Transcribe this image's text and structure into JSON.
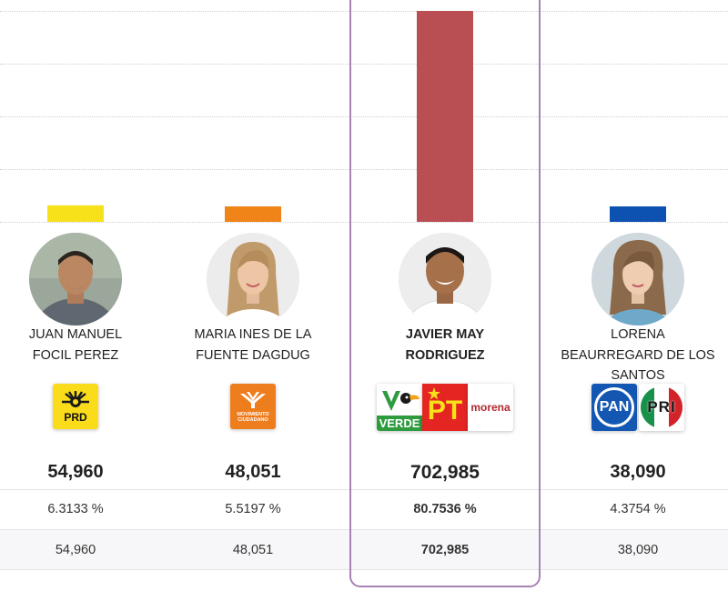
{
  "chart_data": {
    "type": "bar",
    "categories": [
      "JUAN MANUEL FOCIL PEREZ",
      "MARIA INES DE LA FUENTE DAGDUG",
      "JAVIER MAY RODRIGUEZ",
      "LORENA BEAURREGARD DE LOS SANTOS"
    ],
    "values": [
      54960,
      48051,
      702985,
      38090
    ],
    "colors": [
      "#f7e11b",
      "#f08418",
      "#b94f52",
      "#0d52b0"
    ],
    "grid": true,
    "ylim": [
      0,
      702985
    ]
  },
  "candidates": [
    {
      "name_line1": "JUAN MANUEL",
      "name_line2": "FOCIL PEREZ",
      "name_line3": "",
      "votes": "54,960",
      "percent": "6.3133 %",
      "total": "54,960",
      "avatar_icon": "man-portrait-icon",
      "logos": [
        {
          "label": "PRD",
          "icon": "prd-sun-logo"
        }
      ]
    },
    {
      "name_line1": "MARIA INES DE LA",
      "name_line2": "FUENTE DAGDUG",
      "name_line3": "",
      "votes": "48,051",
      "percent": "5.5197 %",
      "total": "48,051",
      "avatar_icon": "woman-portrait-icon",
      "logos": [
        {
          "label": "MOVIMIENTO CIUDADANO",
          "icon": "eagle-logo"
        }
      ]
    },
    {
      "name_line1": "JAVIER MAY",
      "name_line2": "RODRIGUEZ",
      "name_line3": "",
      "votes": "702,985",
      "percent": "80.7536 %",
      "total": "702,985",
      "avatar_icon": "man-portrait-icon",
      "logos": [
        {
          "label": "VERDE",
          "icon": "toucan-logo"
        },
        {
          "label": "PT",
          "icon": "star-logo"
        },
        {
          "label": "morena",
          "icon": "morena-logo"
        }
      ]
    },
    {
      "name_line1": "LORENA",
      "name_line2": "BEAURREGARD DE LOS",
      "name_line3": "SANTOS",
      "votes": "38,090",
      "percent": "4.3754 %",
      "total": "38,090",
      "avatar_icon": "woman-portrait-icon",
      "logos": [
        {
          "label": "PAN",
          "icon": "pan-circle-logo"
        },
        {
          "label": "PRI",
          "icon": "pri-circle-logo"
        }
      ]
    }
  ]
}
